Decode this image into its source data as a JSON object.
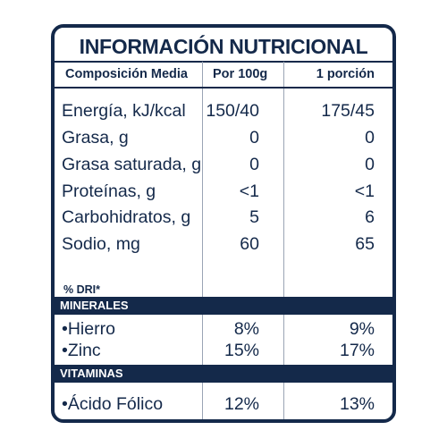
{
  "title": "INFORMACIÓN NUTRICIONAL",
  "columns": {
    "composition": "Composición Media",
    "per100": "Por 100g",
    "portion": "1 porción"
  },
  "nutrients": [
    {
      "label": "Energía, kJ/kcal",
      "per100": "150/40",
      "portion": "175/45"
    },
    {
      "label": "Grasa, g",
      "per100": "0",
      "portion": "0"
    },
    {
      "label": "Grasa saturada, g",
      "per100": "0",
      "portion": "0"
    },
    {
      "label": "Proteínas, g",
      "per100": "<1",
      "portion": "<1"
    },
    {
      "label": "Carbohidratos, g",
      "per100": "5",
      "portion": "6"
    },
    {
      "label": "Sodio, mg",
      "per100": "60",
      "portion": "65"
    }
  ],
  "dri_label": "% DRI*",
  "minerals": {
    "heading": "MINERALES",
    "items": [
      {
        "label": "•Hierro",
        "per100": "8%",
        "portion": "9%"
      },
      {
        "label": "•Zinc",
        "per100": "15%",
        "portion": "17%"
      }
    ]
  },
  "vitamins": {
    "heading": "VITAMINAS",
    "items": [
      {
        "label": "•Ácido Fólico",
        "per100": "12%",
        "portion": "13%"
      }
    ]
  },
  "colors": {
    "navy": "#14294a",
    "background": "#ffffff"
  }
}
